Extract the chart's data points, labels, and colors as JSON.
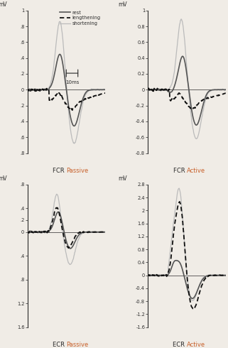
{
  "background_color": "#f0ece6",
  "text_color": "#2a2a2a",
  "colors": {
    "rest": "#555555",
    "lengthening": "#111111",
    "shortening": "#bbbbbb"
  },
  "subplots": {
    "fcr_passive": {
      "title_prefix": "FCR",
      "title_suffix": "Passive",
      "ylim": [
        -0.8,
        1.0
      ],
      "yticks": [
        1.0,
        0.8,
        0.6,
        0.4,
        0.2,
        0.0,
        -0.2,
        -0.4,
        -0.6,
        -0.8
      ],
      "ytick_labels": [
        "1",
        ".8",
        ".6",
        ".4",
        ".2",
        "0",
        ".2",
        ".4",
        ".6",
        ".8"
      ],
      "show_legend": true
    },
    "fcr_active": {
      "title_prefix": "FCR",
      "title_suffix": "Active",
      "ylim": [
        -0.8,
        1.0
      ],
      "yticks": [
        1.0,
        0.8,
        0.6,
        0.4,
        0.2,
        0.0,
        -0.2,
        -0.4,
        -0.6,
        -0.8
      ],
      "ytick_labels": [
        "1",
        "0.8",
        "0.6",
        "0.4",
        "0.2",
        "0",
        "-0.2",
        "-0.4",
        "-0.6",
        "-0.8"
      ],
      "show_legend": false
    },
    "ecr_passive": {
      "title_prefix": "ECR",
      "title_suffix": "Passive",
      "ylim": [
        -1.6,
        0.8
      ],
      "yticks": [
        0.8,
        0.4,
        0.2,
        0.0,
        -0.4,
        -0.8,
        -1.2,
        -1.6
      ],
      "ytick_labels": [
        ".8",
        ".4",
        ".2",
        "0",
        ".4",
        ".8",
        "1.2",
        "1.6"
      ],
      "show_legend": false
    },
    "ecr_active": {
      "title_prefix": "ECR",
      "title_suffix": "Active",
      "ylim": [
        -1.6,
        2.8
      ],
      "yticks": [
        2.8,
        2.4,
        2.0,
        1.6,
        1.2,
        0.8,
        0.4,
        0.0,
        -0.4,
        -0.8,
        -1.2,
        -1.6
      ],
      "ytick_labels": [
        "2.8",
        "2.4",
        "2",
        "1.6",
        "1.2",
        "0.8",
        "0.4",
        "0",
        "-0.4",
        "-0.8",
        "-1.2",
        "-1.6"
      ],
      "show_legend": false
    }
  }
}
